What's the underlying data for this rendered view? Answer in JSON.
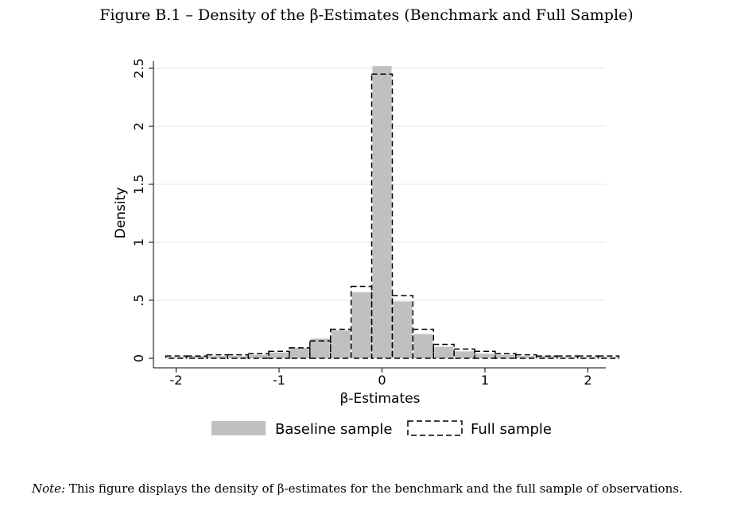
{
  "figure": {
    "title": "Figure B.1 – Density of the β-Estimates (Benchmark and Full Sample)",
    "note_label": "Note:",
    "note_text": " This figure displays the density of β-estimates for the benchmark and the full sample of observations."
  },
  "colors": {
    "baseline_fill": "#c0c0c0",
    "full_stroke": "#000000",
    "grid": "#e6e6e6",
    "plot_bg": "#ffffff"
  },
  "chart_data": {
    "type": "bar",
    "title": "",
    "xlabel": "β-Estimates",
    "ylabel": "Density",
    "xlim": [
      -2.2,
      2.2
    ],
    "ylim": [
      0,
      2.55
    ],
    "xticks": [
      -2,
      -1,
      0,
      1,
      2
    ],
    "xtick_labels": [
      "-2",
      "-1",
      "0",
      "1",
      "2"
    ],
    "yticks": [
      0,
      0.5,
      1,
      1.5,
      2,
      2.5
    ],
    "ytick_labels": [
      "0",
      ".5",
      "1",
      "1.5",
      "2",
      "2.5"
    ],
    "grid": true,
    "legend_position": "bottom",
    "bin_width": 0.2,
    "bin_starts": [
      -2.1,
      -1.9,
      -1.7,
      -1.5,
      -1.3,
      -1.1,
      -0.9,
      -0.7,
      -0.5,
      -0.3,
      -0.1,
      0.1,
      0.3,
      0.5,
      0.7,
      0.9,
      1.1,
      1.3,
      1.5,
      1.7,
      1.9,
      2.1
    ],
    "series": [
      {
        "name": "Baseline sample",
        "style": "filled",
        "values": [
          0.01,
          0.02,
          0.02,
          0.02,
          0.03,
          0.05,
          0.09,
          0.17,
          0.24,
          0.57,
          2.52,
          0.49,
          0.21,
          0.1,
          0.06,
          0.04,
          0.03,
          0.02,
          0.02,
          0.01,
          0.01,
          0.01
        ]
      },
      {
        "name": "Full sample",
        "style": "dashed-outline",
        "values": [
          0.02,
          0.02,
          0.03,
          0.03,
          0.04,
          0.06,
          0.09,
          0.15,
          0.25,
          0.62,
          2.45,
          0.54,
          0.25,
          0.12,
          0.08,
          0.06,
          0.04,
          0.03,
          0.02,
          0.02,
          0.02,
          0.02
        ]
      }
    ]
  }
}
